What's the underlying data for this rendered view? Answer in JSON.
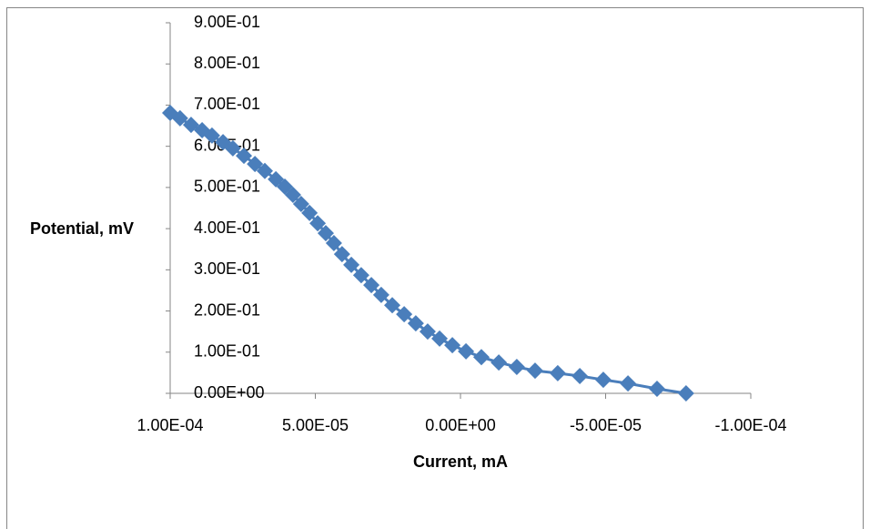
{
  "chart_data": {
    "type": "scatter",
    "x_label": "Current, mA",
    "y_label": "Potential, mV",
    "color": "#4a7ebb",
    "x": [
      0.0001,
      9.66e-05,
      9.28e-05,
      8.9e-05,
      8.56e-05,
      8.18e-05,
      7.84e-05,
      7.46e-05,
      7.08e-05,
      6.74e-05,
      6.36e-05,
      6.05e-05,
      5.77e-05,
      5.49e-05,
      5.2e-05,
      4.92e-05,
      4.64e-05,
      4.36e-05,
      4.08e-05,
      3.76e-05,
      3.42e-05,
      3.07e-05,
      2.73e-05,
      2.35e-05,
      1.94e-05,
      1.54e-05,
      1.13e-05,
      7.2e-06,
      2.8e-06,
      -1.9e-06,
      -7.2e-06,
      -1.32e-05,
      -1.94e-05,
      -2.57e-05,
      -3.35e-05,
      -4.11e-05,
      -4.92e-05,
      -5.77e-05,
      -6.77e-05,
      -7.77e-05
    ],
    "values": [
      0.681,
      0.668,
      0.652,
      0.639,
      0.626,
      0.61,
      0.595,
      0.577,
      0.557,
      0.54,
      0.52,
      0.502,
      0.482,
      0.46,
      0.438,
      0.413,
      0.389,
      0.365,
      0.338,
      0.312,
      0.287,
      0.263,
      0.239,
      0.214,
      0.192,
      0.17,
      0.15,
      0.133,
      0.117,
      0.102,
      0.088,
      0.075,
      0.064,
      0.055,
      0.049,
      0.042,
      0.033,
      0.024,
      0.011,
      0.0
    ],
    "xlim": [
      0.0001,
      -0.0001
    ],
    "xticks": [
      {
        "value": 0.0001,
        "label": "1.00E-04"
      },
      {
        "value": 5e-05,
        "label": "5.00E-05"
      },
      {
        "value": 0,
        "label": "0.00E+00"
      },
      {
        "value": -5e-05,
        "label": "-5.00E-05"
      },
      {
        "value": -0.0001,
        "label": "-1.00E-04"
      }
    ],
    "ylim": [
      0,
      0.9
    ],
    "yticks": [
      {
        "value": 0,
        "label": "0.00E+00"
      },
      {
        "value": 0.1,
        "label": "1.00E-01"
      },
      {
        "value": 0.2,
        "label": "2.00E-01"
      },
      {
        "value": 0.3,
        "label": "3.00E-01"
      },
      {
        "value": 0.4,
        "label": "4.00E-01"
      },
      {
        "value": 0.5,
        "label": "5.00E-01"
      },
      {
        "value": 0.6,
        "label": "6.00E-01"
      },
      {
        "value": 0.7,
        "label": "7.00E-01"
      },
      {
        "value": 0.8,
        "label": "8.00E-01"
      },
      {
        "value": 0.9,
        "label": "9.00E-01"
      }
    ],
    "grid": false
  }
}
